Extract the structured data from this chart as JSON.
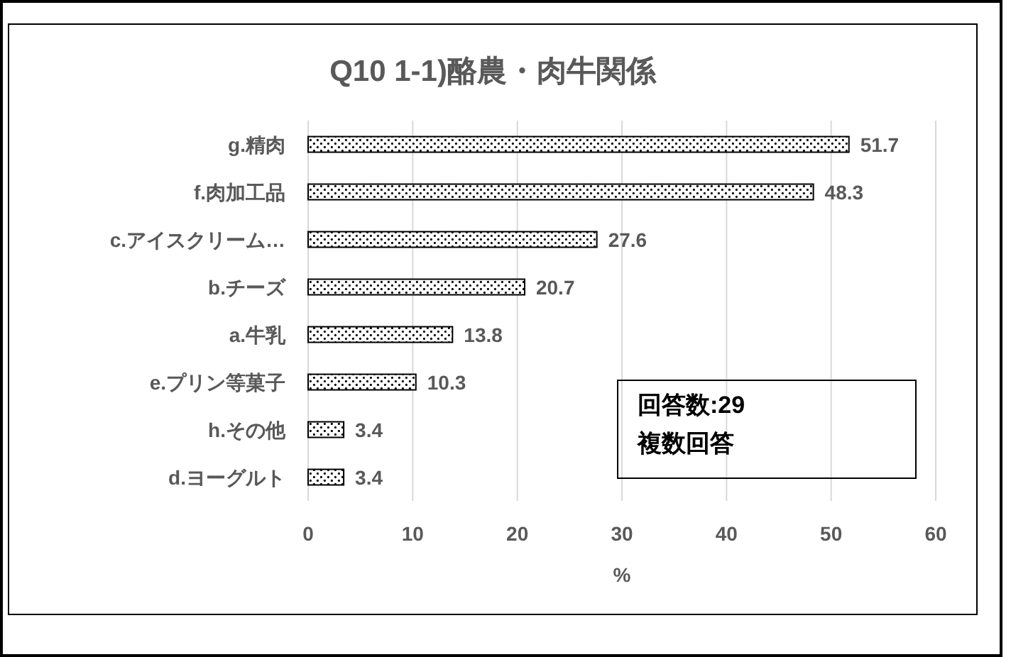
{
  "chart_data": {
    "type": "bar",
    "orientation": "horizontal",
    "title": "Q10 1-1)酪農・肉牛関係",
    "xlabel": "%",
    "categories": [
      "g.精肉",
      "f.肉加工品",
      "c.アイスクリーム…",
      "b.チーズ",
      "a.牛乳",
      "e.プリン等菓子",
      "h.その他",
      "d.ヨーグルト"
    ],
    "values": [
      51.7,
      48.3,
      27.6,
      20.7,
      13.8,
      10.3,
      3.4,
      3.4
    ],
    "color": "#000000",
    "xlim": [
      0,
      60
    ],
    "xticks": [
      0,
      10,
      20,
      30,
      40,
      50,
      60
    ],
    "grid": "x",
    "data_labels": true,
    "annotations": [
      "回答数:29",
      "複数回答"
    ]
  }
}
